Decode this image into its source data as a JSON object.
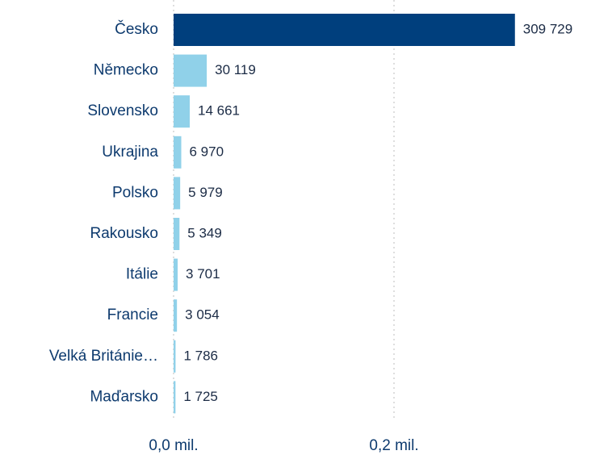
{
  "chart_data": {
    "type": "bar",
    "orientation": "horizontal",
    "categories": [
      "Česko",
      "Německo",
      "Slovensko",
      "Ukrajina",
      "Polsko",
      "Rakousko",
      "Itálie",
      "Francie",
      "Velká Británie…",
      "Maďarsko"
    ],
    "values": [
      309729,
      30119,
      14661,
      6970,
      5979,
      5349,
      3701,
      3054,
      1786,
      1725
    ],
    "value_labels": [
      "309 729",
      "30 119",
      "14 661",
      "6 970",
      "5 979",
      "5 349",
      "3 701",
      "3 054",
      "1 786",
      "1 725"
    ],
    "colors": [
      "#003f7d",
      "#90d1e9",
      "#90d1e9",
      "#90d1e9",
      "#90d1e9",
      "#90d1e9",
      "#90d1e9",
      "#90d1e9",
      "#90d1e9",
      "#90d1e9"
    ],
    "xlim": [
      0,
      320000
    ],
    "xticks": [
      {
        "value": 0,
        "label": "0,0 mil."
      },
      {
        "value": 200000,
        "label": "0,2 mil."
      }
    ],
    "grid": true
  }
}
